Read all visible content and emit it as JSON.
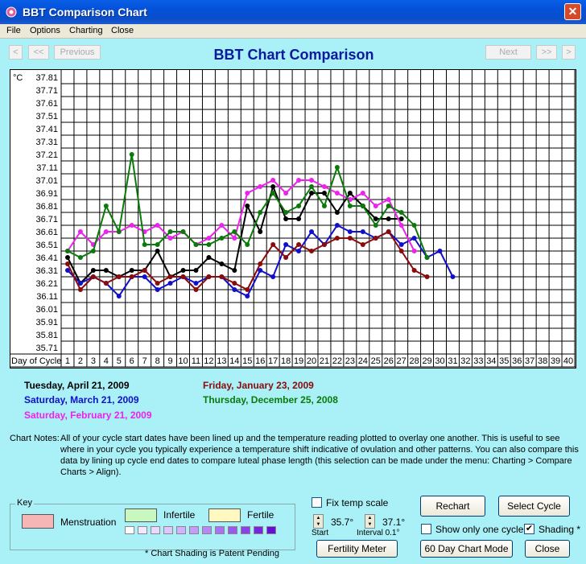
{
  "window": {
    "title": "BBT Comparison Chart",
    "close_glyph": "✕"
  },
  "menu": [
    "File",
    "Options",
    "Charting",
    "Close"
  ],
  "nav": {
    "first": "<",
    "prev_many": "<<",
    "previous": "Previous",
    "next": "Next",
    "next_many": ">>",
    "last": ">"
  },
  "chart_title": "BBT Chart Comparison",
  "chart_data": {
    "type": "line",
    "unit_label": "°C",
    "y_ticks": [
      "37.81",
      "37.71",
      "37.61",
      "37.51",
      "37.41",
      "37.31",
      "37.21",
      "37.11",
      "37.01",
      "36.91",
      "36.81",
      "36.71",
      "36.61",
      "36.51",
      "36.41",
      "36.31",
      "36.21",
      "36.11",
      "36.01",
      "35.91",
      "35.81",
      "35.71"
    ],
    "xlabel": "Day of Cycle",
    "x": [
      1,
      2,
      3,
      4,
      5,
      6,
      7,
      8,
      9,
      10,
      11,
      12,
      13,
      14,
      15,
      16,
      17,
      18,
      19,
      20,
      21,
      22,
      23,
      24,
      25,
      26,
      27,
      28,
      29,
      30,
      31,
      32,
      33,
      34,
      35,
      36,
      37,
      38,
      39,
      40
    ],
    "ylim": [
      35.71,
      37.81
    ],
    "series": [
      {
        "name": "Tuesday, April 21, 2009",
        "color": "#000000",
        "values": [
          36.41,
          36.21,
          36.31,
          36.31,
          36.26,
          36.31,
          36.31,
          36.46,
          36.26,
          36.31,
          36.31,
          36.41,
          36.36,
          36.31,
          36.81,
          36.61,
          36.96,
          36.71,
          36.71,
          36.91,
          36.91,
          36.76,
          36.91,
          36.81,
          36.71,
          36.71,
          36.71,
          null,
          null,
          null,
          null,
          null,
          null,
          null,
          null,
          null,
          null,
          null,
          null,
          null
        ]
      },
      {
        "name": "Saturday, March 21, 2009",
        "color": "#1010cc",
        "values": [
          36.31,
          36.21,
          36.26,
          36.21,
          36.11,
          36.26,
          36.26,
          36.16,
          36.21,
          36.26,
          36.21,
          36.26,
          36.26,
          36.16,
          36.11,
          36.31,
          36.26,
          36.51,
          36.46,
          36.61,
          36.51,
          36.66,
          36.61,
          36.61,
          36.56,
          36.61,
          36.51,
          36.56,
          36.41,
          36.46,
          36.26,
          null,
          null,
          null,
          null,
          null,
          null,
          null,
          null,
          null
        ]
      },
      {
        "name": "Saturday, February 21, 2009",
        "color": "#ee22ee",
        "values": [
          36.46,
          36.61,
          36.51,
          36.61,
          36.61,
          36.66,
          36.61,
          36.66,
          36.56,
          36.61,
          36.51,
          36.56,
          36.66,
          36.56,
          36.91,
          36.96,
          37.01,
          36.91,
          37.01,
          37.01,
          36.96,
          36.91,
          36.86,
          36.91,
          36.81,
          36.86,
          36.66,
          36.46,
          null,
          null,
          null,
          null,
          null,
          null,
          null,
          null,
          null,
          null,
          null,
          null
        ]
      },
      {
        "name": "Friday, January 23, 2009",
        "color": "#8b0a0a",
        "values": [
          36.36,
          36.16,
          36.26,
          36.21,
          36.26,
          36.26,
          36.31,
          36.21,
          36.26,
          36.26,
          36.16,
          36.26,
          36.26,
          36.21,
          36.16,
          36.36,
          36.51,
          36.41,
          36.51,
          36.46,
          36.51,
          36.56,
          36.56,
          36.51,
          36.56,
          36.61,
          36.46,
          36.31,
          36.26,
          null,
          null,
          null,
          null,
          null,
          null,
          null,
          null,
          null,
          null,
          null
        ]
      },
      {
        "name": "Thursday, December 25, 2008",
        "color": "#0a7a0a",
        "values": [
          36.46,
          36.41,
          36.46,
          36.81,
          36.61,
          37.21,
          36.51,
          36.51,
          36.61,
          36.61,
          36.51,
          36.51,
          36.56,
          36.61,
          36.51,
          36.76,
          36.91,
          36.76,
          36.81,
          36.96,
          36.81,
          37.11,
          36.81,
          36.81,
          36.66,
          36.81,
          36.76,
          36.66,
          36.41,
          null,
          null,
          null,
          null,
          null,
          null,
          null,
          null,
          null,
          null,
          null
        ]
      }
    ]
  },
  "cycles": [
    {
      "label": "Tuesday, April 21, 2009",
      "color": "#000000"
    },
    {
      "label": "Saturday, March 21, 2009",
      "color": "#1010cc"
    },
    {
      "label": "Saturday, February 21, 2009",
      "color": "#ee22ee"
    },
    {
      "label": "Friday, January 23, 2009",
      "color": "#8b0a0a"
    },
    {
      "label": "Thursday, December 25, 2008",
      "color": "#0a7a0a"
    }
  ],
  "notes": {
    "label": "Chart Notes:",
    "text": "All of your cycle start dates have been lined up and the temperature reading plotted to overlay one another.  This is useful to see where in your cycle you typically experience a temperature shift indicative of ovulation and other patterns.  You can also compare this data by lining up cycle end dates to compare luteal phase length (this selection can be made under the menu: Charting > Compare Charts > Align)."
  },
  "key": {
    "title": "Key",
    "menstruation": "Menstruation",
    "infertile": "Infertile",
    "fertile": "Fertile",
    "menstruation_color": "#f7b6b6",
    "infertile_color": "#c8f7c0",
    "fertile_color": "#fff8c0",
    "shading_colors": [
      "#ffffff",
      "#f3e8ff",
      "#e9d8ff",
      "#dec6ff",
      "#d2b2ff",
      "#c69cfb",
      "#b986f8",
      "#ab70f3",
      "#9c58ee",
      "#8c40e8",
      "#7b24e0",
      "#6a0cd8"
    ],
    "patent_note": "* Chart Shading is Patent Pending"
  },
  "controls": {
    "fix_temp_scale": "Fix temp scale",
    "start_value": "35.7°",
    "start_label": "Start",
    "interval_value": "37.1°",
    "interval_label": "Interval 0.1°",
    "fertility_meter": "Fertility Meter",
    "recharts": "Rechart",
    "select_cycle": "Select Cycle",
    "show_only_one": "Show only one cycle",
    "shading": "Shading *",
    "sixty_day": "60 Day Chart Mode",
    "close": "Close",
    "shading_checked": "✔"
  }
}
